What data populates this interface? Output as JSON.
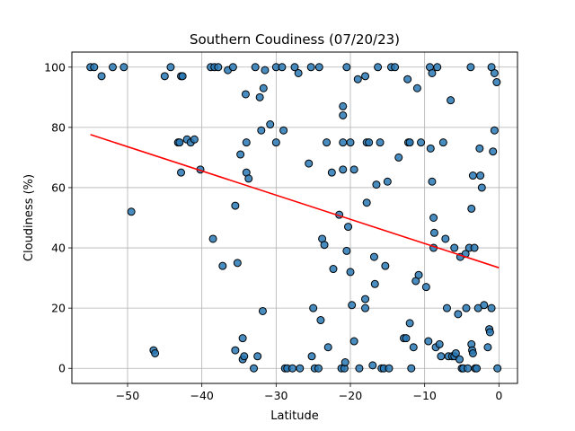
{
  "chart_data": {
    "type": "scatter",
    "title": "Southern Coudiness (07/20/23)",
    "xlabel": "Latitude",
    "ylabel": "Cloudiness (%)",
    "xlim": [
      -57.5,
      2.5
    ],
    "ylim": [
      -5,
      105
    ],
    "xticks": [
      -50,
      -40,
      -30,
      -20,
      -10,
      0
    ],
    "yticks": [
      0,
      20,
      40,
      60,
      80,
      100
    ],
    "grid": true,
    "colors": {
      "point_fill": "#2878b5",
      "point_edge": "#000000",
      "regression": "#ff0000",
      "grid": "#b0b0b0"
    },
    "regression": {
      "x": [
        -55,
        0
      ],
      "y": [
        77.6,
        33.4
      ]
    },
    "points": [
      [
        -55,
        100
      ],
      [
        -54.5,
        100
      ],
      [
        -53.5,
        97
      ],
      [
        -52,
        100
      ],
      [
        -50.5,
        100
      ],
      [
        -49.5,
        52
      ],
      [
        -46.5,
        6
      ],
      [
        -46.3,
        5
      ],
      [
        -45,
        97
      ],
      [
        -44.2,
        100
      ],
      [
        -43.2,
        75
      ],
      [
        -43,
        75
      ],
      [
        -42.8,
        65
      ],
      [
        -42.8,
        97
      ],
      [
        -42.6,
        97
      ],
      [
        -42,
        76
      ],
      [
        -41.5,
        75
      ],
      [
        -41,
        76
      ],
      [
        -40.2,
        66
      ],
      [
        -38.8,
        100
      ],
      [
        -38.5,
        43
      ],
      [
        -38.3,
        100
      ],
      [
        -37.8,
        100
      ],
      [
        -37.2,
        34
      ],
      [
        -36.5,
        99
      ],
      [
        -35.8,
        100
      ],
      [
        -35.5,
        54
      ],
      [
        -35.5,
        6
      ],
      [
        -35.2,
        35
      ],
      [
        -34.8,
        71
      ],
      [
        -34.5,
        10
      ],
      [
        -34.5,
        3
      ],
      [
        -34.3,
        4
      ],
      [
        -34.1,
        91
      ],
      [
        -34,
        65
      ],
      [
        -34,
        75
      ],
      [
        -33.7,
        63
      ],
      [
        -33,
        0
      ],
      [
        -32.8,
        100
      ],
      [
        -32.5,
        4
      ],
      [
        -32.2,
        90
      ],
      [
        -32,
        79
      ],
      [
        -31.8,
        19
      ],
      [
        -31.7,
        93
      ],
      [
        -31.5,
        99
      ],
      [
        -30.8,
        81
      ],
      [
        -30,
        100
      ],
      [
        -30,
        75
      ],
      [
        -29.2,
        100
      ],
      [
        -29,
        79
      ],
      [
        -28.8,
        0
      ],
      [
        -28.5,
        0
      ],
      [
        -27.8,
        0
      ],
      [
        -27.5,
        100
      ],
      [
        -27,
        98
      ],
      [
        -26.8,
        0
      ],
      [
        -25.6,
        68
      ],
      [
        -25.3,
        100
      ],
      [
        -25.2,
        4
      ],
      [
        -25,
        20
      ],
      [
        -24.8,
        0
      ],
      [
        -24.3,
        0
      ],
      [
        -24.2,
        100
      ],
      [
        -24,
        16
      ],
      [
        -23.8,
        43
      ],
      [
        -23.5,
        41
      ],
      [
        -23.2,
        75
      ],
      [
        -23,
        7
      ],
      [
        -22.5,
        65
      ],
      [
        -22.3,
        33
      ],
      [
        -21.5,
        51
      ],
      [
        -21.2,
        0
      ],
      [
        -21,
        75
      ],
      [
        -21,
        66
      ],
      [
        -21,
        87
      ],
      [
        -21,
        84
      ],
      [
        -20.8,
        0
      ],
      [
        -20.7,
        2
      ],
      [
        -20.5,
        39
      ],
      [
        -20.5,
        100
      ],
      [
        -20.3,
        47
      ],
      [
        -20,
        75
      ],
      [
        -20,
        32
      ],
      [
        -19.8,
        21
      ],
      [
        -19.5,
        9
      ],
      [
        -19.5,
        66
      ],
      [
        -19,
        96
      ],
      [
        -18.8,
        0
      ],
      [
        -18,
        97
      ],
      [
        -18,
        23
      ],
      [
        -18,
        20
      ],
      [
        -17.8,
        75
      ],
      [
        -17.8,
        55
      ],
      [
        -17.5,
        75
      ],
      [
        -17,
        1
      ],
      [
        -16.8,
        37
      ],
      [
        -16.7,
        28
      ],
      [
        -16.5,
        61
      ],
      [
        -16.3,
        100
      ],
      [
        -16,
        75
      ],
      [
        -15.8,
        0
      ],
      [
        -15.5,
        0
      ],
      [
        -15.3,
        34
      ],
      [
        -15,
        62
      ],
      [
        -14.8,
        0
      ],
      [
        -14.5,
        100
      ],
      [
        -14,
        100
      ],
      [
        -13.5,
        70
      ],
      [
        -12.8,
        10
      ],
      [
        -12.5,
        10
      ],
      [
        -12.3,
        96
      ],
      [
        -12.2,
        75
      ],
      [
        -12,
        75
      ],
      [
        -12,
        15
      ],
      [
        -11.8,
        0
      ],
      [
        -11.5,
        7
      ],
      [
        -11.2,
        29
      ],
      [
        -11,
        93
      ],
      [
        -10.8,
        31
      ],
      [
        -10.5,
        75
      ],
      [
        -9.8,
        27
      ],
      [
        -9.5,
        9
      ],
      [
        -9.3,
        100
      ],
      [
        -9.2,
        73
      ],
      [
        -9,
        62
      ],
      [
        -9,
        98
      ],
      [
        -8.8,
        50
      ],
      [
        -8.8,
        40
      ],
      [
        -8.7,
        45
      ],
      [
        -8.5,
        7
      ],
      [
        -8.3,
        100
      ],
      [
        -8,
        8
      ],
      [
        -7.8,
        4
      ],
      [
        -7.5,
        75
      ],
      [
        -7.2,
        43
      ],
      [
        -7,
        20
      ],
      [
        -6.8,
        4
      ],
      [
        -6.5,
        89
      ],
      [
        -6.3,
        4
      ],
      [
        -6,
        40
      ],
      [
        -6,
        4
      ],
      [
        -5.8,
        5
      ],
      [
        -5.5,
        18
      ],
      [
        -5.3,
        3
      ],
      [
        -5.2,
        37
      ],
      [
        -5,
        0
      ],
      [
        -4.8,
        0
      ],
      [
        -4.5,
        38
      ],
      [
        -4.4,
        20
      ],
      [
        -4.2,
        0
      ],
      [
        -4,
        40
      ],
      [
        -3.8,
        100
      ],
      [
        -3.7,
        53
      ],
      [
        -3.7,
        8
      ],
      [
        -3.6,
        6
      ],
      [
        -3.5,
        64
      ],
      [
        -3.5,
        5
      ],
      [
        -3.3,
        40
      ],
      [
        -3.2,
        0
      ],
      [
        -3,
        0
      ],
      [
        -2.8,
        20
      ],
      [
        -2.6,
        73
      ],
      [
        -2.5,
        64
      ],
      [
        -2.3,
        60
      ],
      [
        -2,
        21
      ],
      [
        -1.5,
        7
      ],
      [
        -1.3,
        13
      ],
      [
        -1.2,
        12
      ],
      [
        -1,
        20
      ],
      [
        -1,
        100
      ],
      [
        -0.8,
        72
      ],
      [
        -0.6,
        79
      ],
      [
        -0.6,
        98
      ],
      [
        -0.3,
        95
      ],
      [
        -0.2,
        0
      ]
    ]
  }
}
